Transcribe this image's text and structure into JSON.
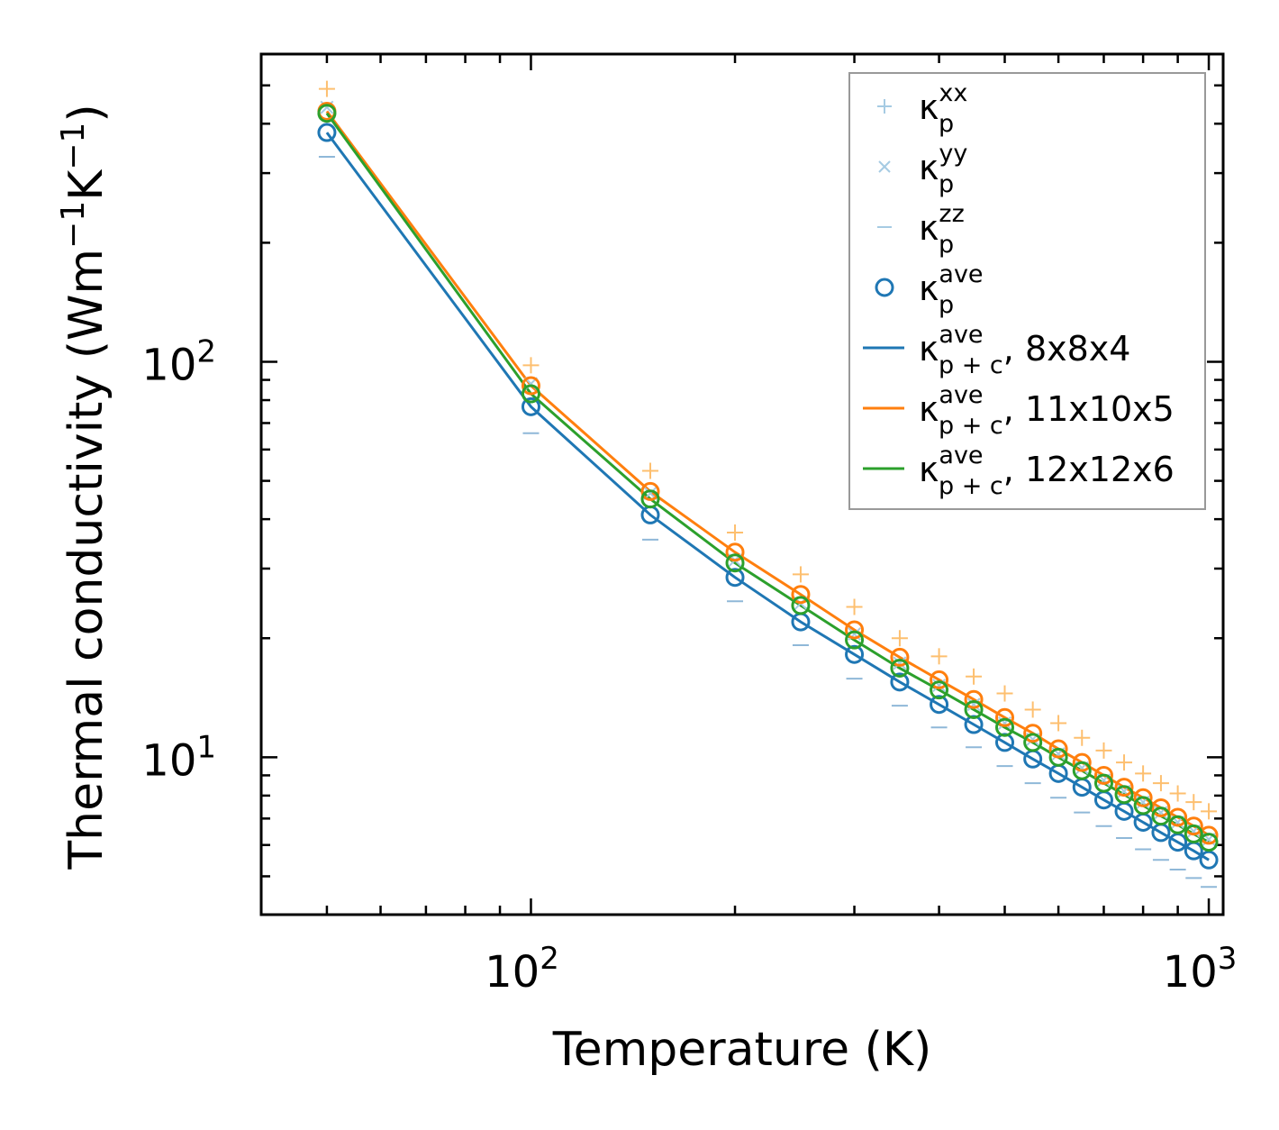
{
  "chart_data": {
    "type": "scatter+line",
    "title": "",
    "xlabel": "Temperature (K)",
    "ylabel_parts": [
      "Thermal conductivity (Wm",
      "−1",
      "K",
      "−1",
      ")"
    ],
    "xscale": "log",
    "yscale": "log",
    "xlim": [
      40,
      1050
    ],
    "ylim": [
      4,
      600
    ],
    "x_major_ticks": [
      {
        "value": 100,
        "base": "10",
        "exp": "2"
      },
      {
        "value": 1000,
        "base": "10",
        "exp": "3"
      }
    ],
    "y_major_ticks": [
      {
        "value": 10,
        "base": "10",
        "exp": "1"
      },
      {
        "value": 100,
        "base": "10",
        "exp": "2"
      }
    ],
    "x": [
      50,
      100,
      150,
      200,
      250,
      300,
      350,
      400,
      450,
      500,
      550,
      600,
      650,
      700,
      750,
      800,
      850,
      900,
      950,
      1000
    ],
    "scatter_series": [
      {
        "name": "kp_xx",
        "marker": "plus",
        "color": "#fdbf6f",
        "values": [
          490,
          98,
          53,
          37,
          29,
          24,
          20,
          18,
          16,
          14.5,
          13.2,
          12.2,
          11.2,
          10.4,
          9.7,
          9.1,
          8.6,
          8.1,
          7.7,
          7.3
        ]
      },
      {
        "name": "kp_yy",
        "marker": "cross",
        "color": "#a6cbe3",
        "values": [
          440,
          88,
          46.5,
          31.5,
          24.5,
          20.5,
          17.3,
          15.2,
          13.6,
          12.2,
          11.1,
          10.2,
          9.4,
          8.75,
          8.2,
          7.7,
          7.25,
          6.85,
          6.5,
          6.2
        ]
      },
      {
        "name": "kp_zz",
        "marker": "minus",
        "color": "#8fb8d8",
        "values": [
          330,
          66,
          35.5,
          24.8,
          19.2,
          15.8,
          13.5,
          11.9,
          10.6,
          9.5,
          8.6,
          7.9,
          7.25,
          6.7,
          6.25,
          5.85,
          5.5,
          5.2,
          4.95,
          4.7
        ]
      },
      {
        "name": "kp_ave 8x8x4",
        "marker": "circle",
        "color": "#1f77b4",
        "values": [
          380,
          77,
          41,
          28.5,
          22,
          18.2,
          15.5,
          13.6,
          12.1,
          10.9,
          9.9,
          9.1,
          8.4,
          7.8,
          7.3,
          6.85,
          6.45,
          6.1,
          5.8,
          5.5
        ]
      },
      {
        "name": "kp_ave 11x10x5",
        "marker": "circle",
        "color": "#ff7f0e",
        "values": [
          430,
          87,
          47,
          33,
          25.8,
          21,
          17.9,
          15.7,
          14,
          12.6,
          11.5,
          10.5,
          9.7,
          9,
          8.4,
          7.9,
          7.45,
          7.05,
          6.7,
          6.35
        ]
      },
      {
        "name": "kp_ave 12x12x6",
        "marker": "circle",
        "color": "#2ca02c",
        "values": [
          425,
          83,
          45,
          31,
          24.2,
          19.8,
          16.8,
          14.8,
          13.2,
          11.9,
          10.9,
          10,
          9.25,
          8.6,
          8.05,
          7.55,
          7.1,
          6.75,
          6.4,
          6.1
        ]
      }
    ],
    "line_series": [
      {
        "name": "8x8x4",
        "color": "#1f77b4",
        "values": [
          380,
          77,
          41,
          28.5,
          22,
          18.2,
          15.5,
          13.6,
          12.1,
          10.9,
          9.9,
          9.1,
          8.4,
          7.8,
          7.3,
          6.85,
          6.45,
          6.1,
          5.8,
          5.5
        ]
      },
      {
        "name": "11x10x5",
        "color": "#ff7f0e",
        "values": [
          430,
          87,
          47,
          33,
          25.8,
          21,
          17.9,
          15.7,
          14,
          12.6,
          11.5,
          10.5,
          9.7,
          9,
          8.4,
          7.9,
          7.45,
          7.05,
          6.7,
          6.35
        ]
      },
      {
        "name": "12x12x6",
        "color": "#2ca02c",
        "values": [
          425,
          83,
          45,
          31,
          24.2,
          19.8,
          16.8,
          14.8,
          13.2,
          11.9,
          10.9,
          10,
          9.25,
          8.6,
          8.05,
          7.55,
          7.1,
          6.75,
          6.4,
          6.1
        ]
      }
    ],
    "legend": {
      "position": "top-right",
      "entries": [
        {
          "marker": "plus",
          "color": "#a6cbe3",
          "base": "κ",
          "sup": "xx",
          "sub": "p",
          "suffix": ""
        },
        {
          "marker": "cross",
          "color": "#a6cbe3",
          "base": "κ",
          "sup": "yy",
          "sub": "p",
          "suffix": ""
        },
        {
          "marker": "minus",
          "color": "#a6cbe3",
          "base": "κ",
          "sup": "zz",
          "sub": "p",
          "suffix": ""
        },
        {
          "marker": "circle",
          "color": "#1f77b4",
          "base": "κ",
          "sup": "ave",
          "sub": "p",
          "suffix": ""
        },
        {
          "marker": "line",
          "color": "#1f77b4",
          "base": "κ",
          "sup": "ave",
          "sub": "p + c",
          "suffix": ", 8x8x4"
        },
        {
          "marker": "line",
          "color": "#ff7f0e",
          "base": "κ",
          "sup": "ave",
          "sub": "p + c",
          "suffix": ", 11x10x5"
        },
        {
          "marker": "line",
          "color": "#2ca02c",
          "base": "κ",
          "sup": "ave",
          "sub": "p + c",
          "suffix": ", 12x12x6"
        }
      ]
    }
  }
}
